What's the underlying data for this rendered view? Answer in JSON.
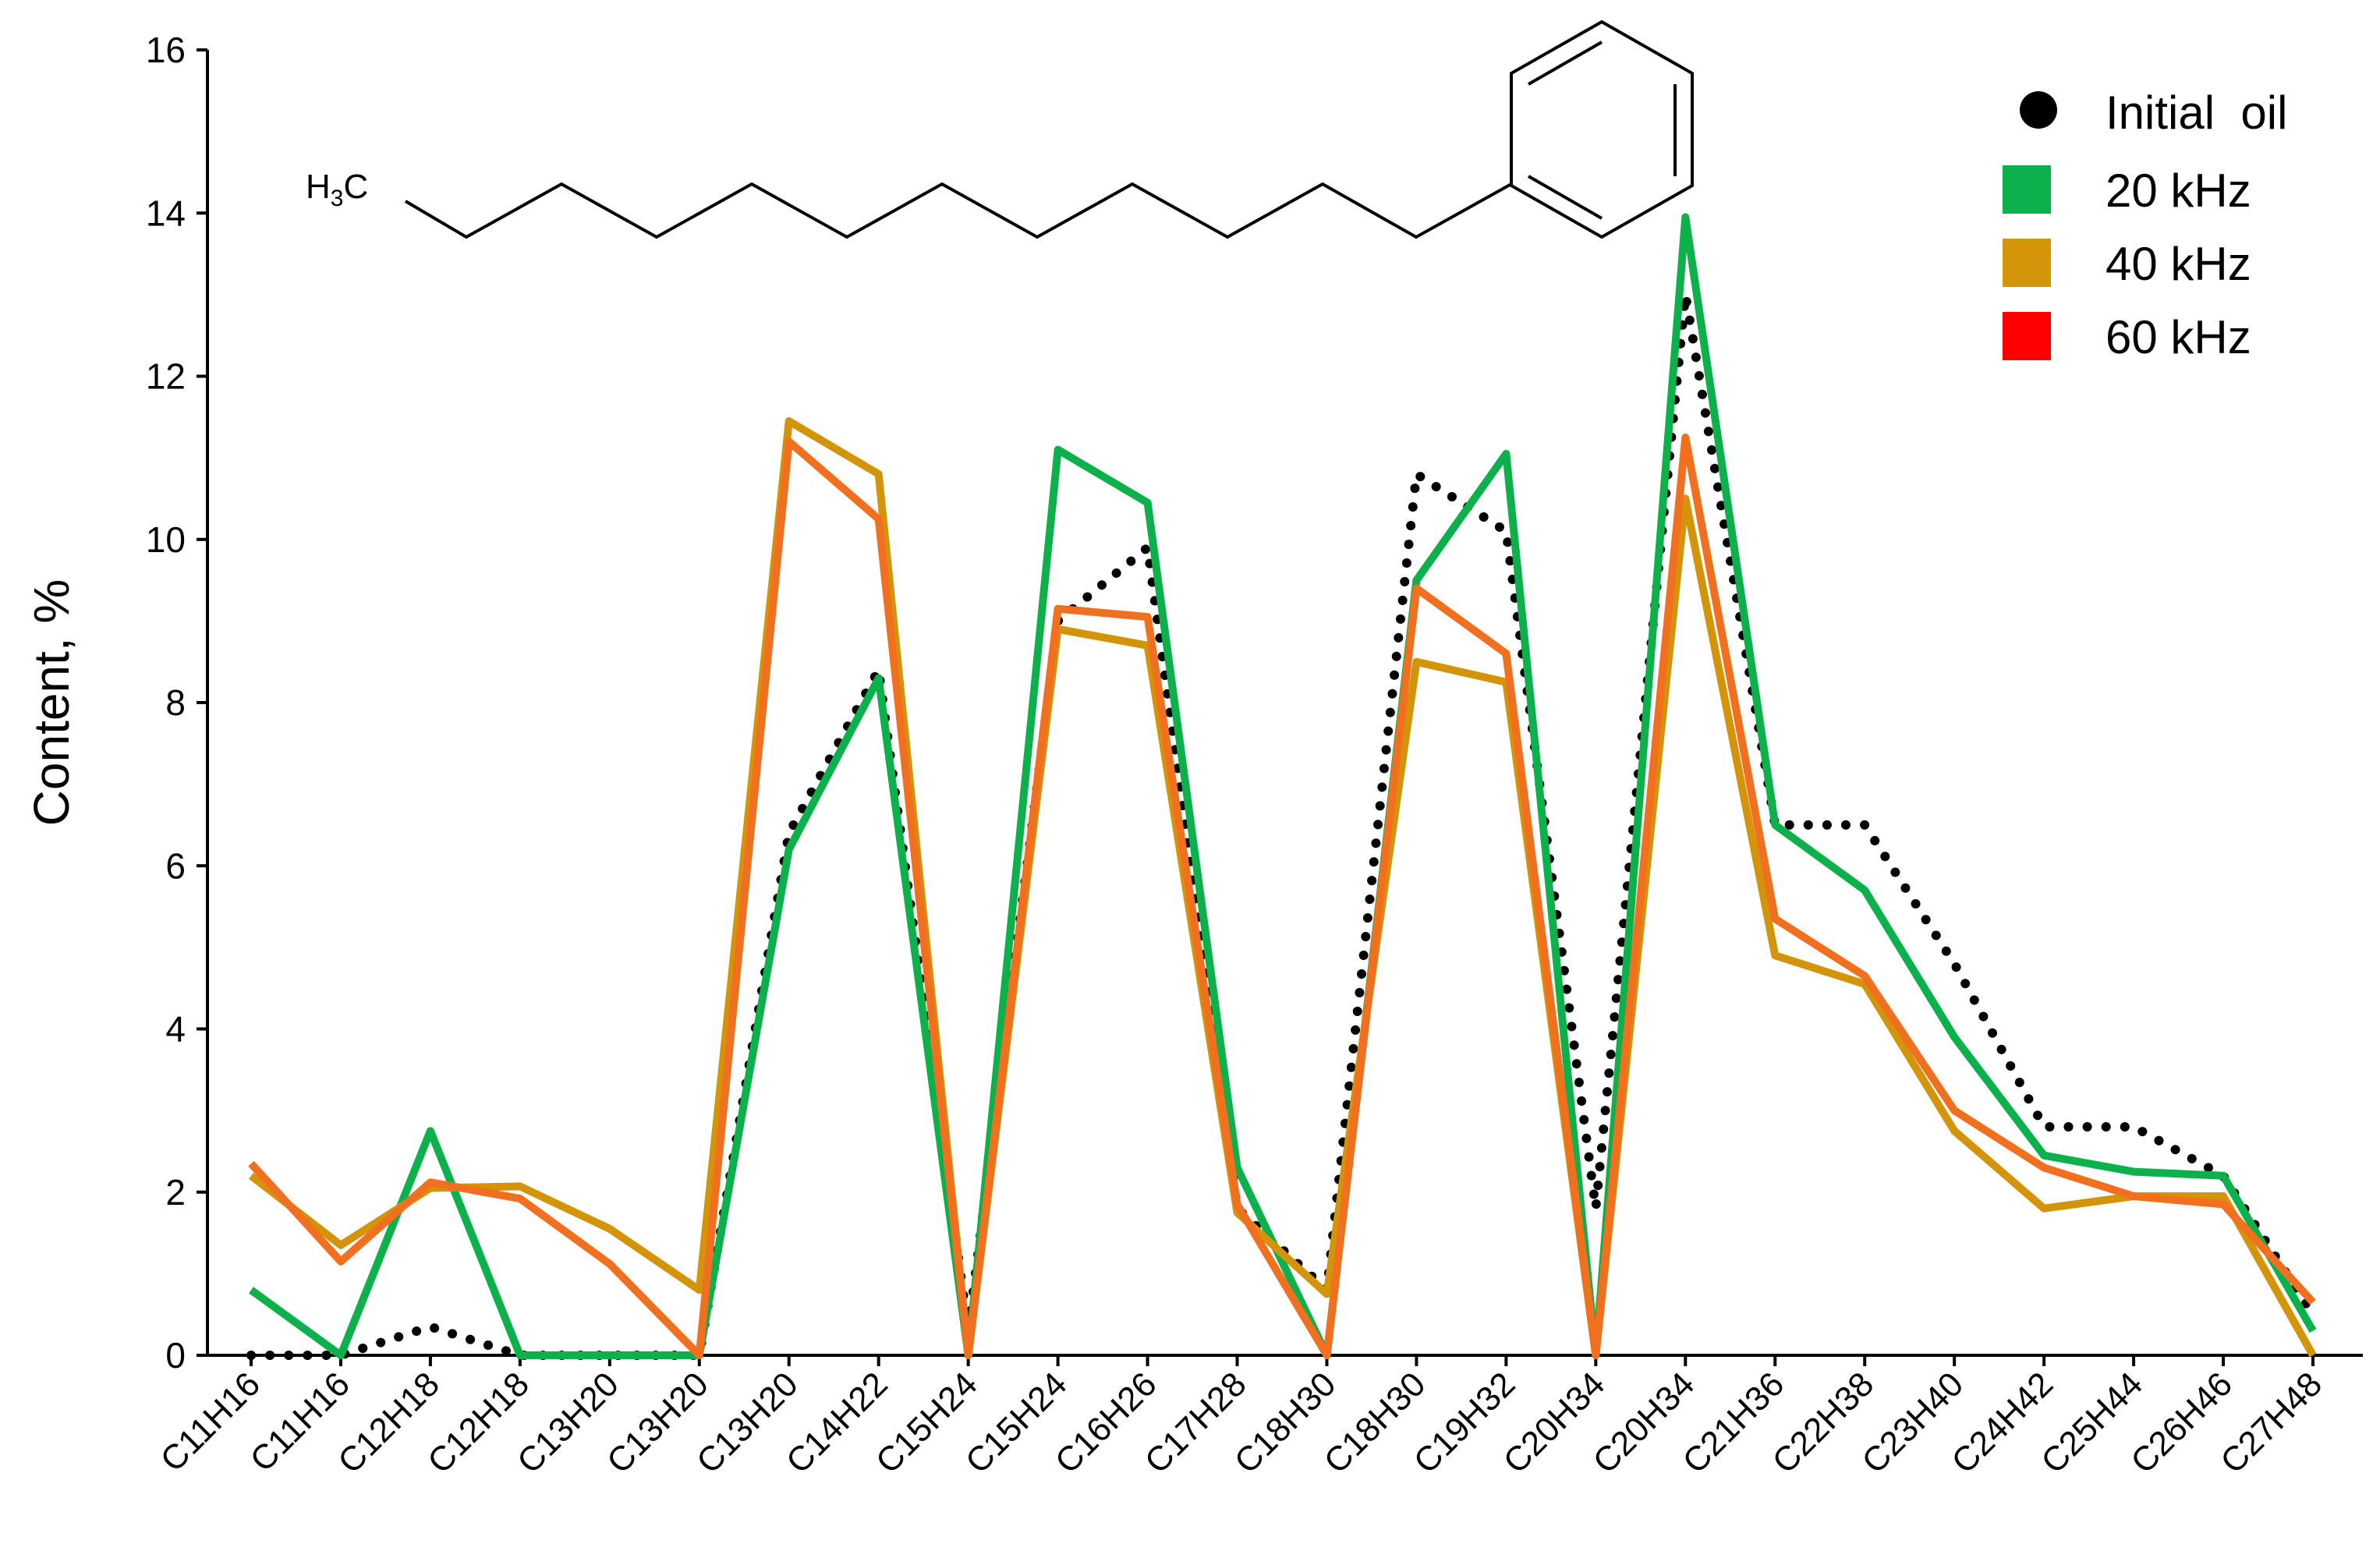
{
  "chart_data": {
    "type": "line",
    "ylabel": "Content, %",
    "xlabel": "",
    "ylim": [
      0,
      16
    ],
    "yticks": [
      0,
      2,
      4,
      6,
      8,
      10,
      12,
      14,
      16
    ],
    "categories": [
      "C11H16",
      "C11H16",
      "C12H18",
      "C12H18",
      "C13H20",
      "C13H20",
      "C13H20",
      "C14H22",
      "C15H24",
      "C15H24",
      "C16H26",
      "C17H28",
      "C18H30",
      "C18H30",
      "C19H32",
      "C20H34",
      "C20H34",
      "C21H36",
      "C22H38",
      "C23H40",
      "C24H42",
      "C25H44",
      "C26H46",
      "C27H48"
    ],
    "legend_position": "top-right",
    "series": [
      {
        "name": "Initial  oil",
        "color": "#000000",
        "style": "dotted",
        "marker": "circle",
        "values": [
          0,
          0,
          0.35,
          0,
          0,
          0,
          6.4,
          8.4,
          0.3,
          9.0,
          9.9,
          1.8,
          0.8,
          10.8,
          10.1,
          1.8,
          13.0,
          6.5,
          6.5,
          4.8,
          2.8,
          2.8,
          2.2,
          0.5
        ]
      },
      {
        "name": "20 kHz",
        "color": "#0db14b",
        "style": "solid",
        "marker": "square",
        "values": [
          0.8,
          0,
          2.75,
          0,
          0,
          0,
          6.2,
          8.3,
          0,
          11.1,
          10.45,
          2.3,
          0,
          9.5,
          11.05,
          0,
          13.95,
          6.5,
          5.7,
          3.9,
          2.45,
          2.25,
          2.2,
          0.3
        ]
      },
      {
        "name": "40 kHz",
        "color": "#d4940a",
        "style": "solid",
        "marker": "square",
        "values": [
          2.2,
          1.35,
          2.05,
          2.07,
          1.55,
          0.8,
          11.45,
          10.8,
          0,
          8.9,
          8.7,
          1.75,
          0.75,
          8.5,
          8.25,
          0,
          10.5,
          4.9,
          4.55,
          2.75,
          1.8,
          1.95,
          1.95,
          0
        ]
      },
      {
        "name": "60 kHz",
        "color": "#f07020",
        "style": "solid",
        "marker": "square",
        "legend_color": "#ff0000",
        "values": [
          2.35,
          1.15,
          2.12,
          1.92,
          1.12,
          0,
          11.2,
          10.25,
          0,
          9.15,
          9.05,
          1.85,
          0,
          9.4,
          8.6,
          0,
          11.25,
          5.35,
          4.65,
          3.0,
          2.3,
          1.95,
          1.85,
          0.65
        ]
      }
    ]
  },
  "molecule": {
    "label": "H3C"
  }
}
